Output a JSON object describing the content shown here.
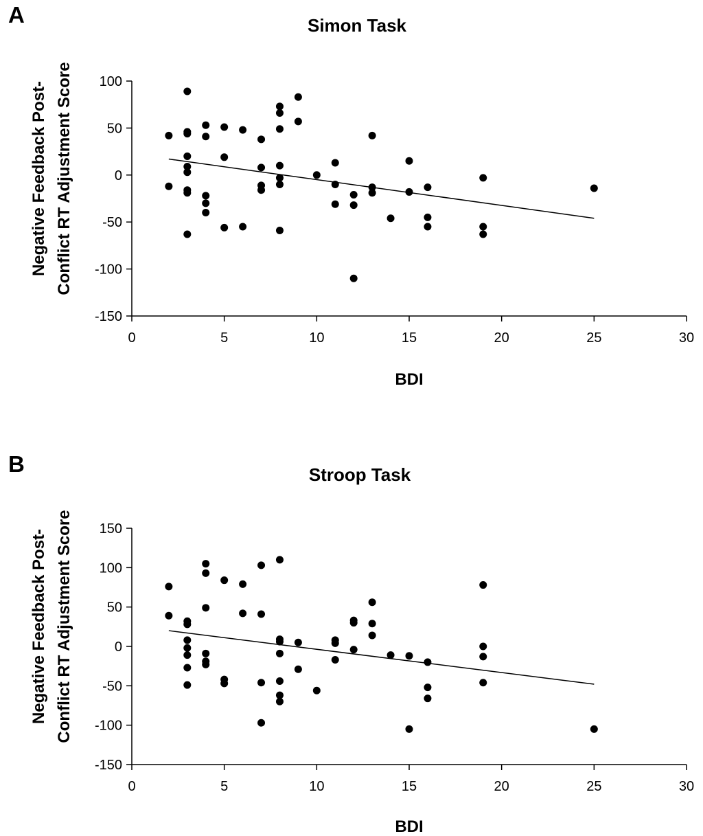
{
  "chart_data": [
    {
      "type": "scatter",
      "panel_label": "A",
      "title": "Simon Task",
      "xlabel": "BDI",
      "ylabel_lines": [
        "Negative Feedback Post-",
        "Conflict RT Adjustment Score"
      ],
      "xlim": [
        0,
        30
      ],
      "ylim": [
        -150,
        100
      ],
      "xticks": [
        0,
        5,
        10,
        15,
        20,
        25,
        30
      ],
      "yticks": [
        -150,
        -100,
        -50,
        0,
        50,
        100
      ],
      "grid": false,
      "marker_color": "#000000",
      "points": [
        [
          2,
          42
        ],
        [
          2,
          -12
        ],
        [
          3,
          89
        ],
        [
          3,
          46
        ],
        [
          3,
          44
        ],
        [
          3,
          20
        ],
        [
          3,
          9
        ],
        [
          3,
          3
        ],
        [
          3,
          -16
        ],
        [
          3,
          -19
        ],
        [
          3,
          -63
        ],
        [
          4,
          53
        ],
        [
          4,
          41
        ],
        [
          4,
          -22
        ],
        [
          4,
          -30
        ],
        [
          4,
          -40
        ],
        [
          5,
          51
        ],
        [
          5,
          19
        ],
        [
          5,
          -56
        ],
        [
          6,
          48
        ],
        [
          6,
          -55
        ],
        [
          7,
          38
        ],
        [
          7,
          8
        ],
        [
          7,
          -11
        ],
        [
          7,
          -16
        ],
        [
          8,
          73
        ],
        [
          8,
          66
        ],
        [
          8,
          49
        ],
        [
          8,
          10
        ],
        [
          8,
          -3
        ],
        [
          8,
          -10
        ],
        [
          8,
          -59
        ],
        [
          9,
          83
        ],
        [
          9,
          57
        ],
        [
          10,
          0
        ],
        [
          11,
          13
        ],
        [
          11,
          -10
        ],
        [
          11,
          -31
        ],
        [
          12,
          -21
        ],
        [
          12,
          -32
        ],
        [
          12,
          -110
        ],
        [
          13,
          42
        ],
        [
          13,
          -13
        ],
        [
          13,
          -19
        ],
        [
          14,
          -46
        ],
        [
          15,
          15
        ],
        [
          15,
          -18
        ],
        [
          16,
          -13
        ],
        [
          16,
          -45
        ],
        [
          16,
          -55
        ],
        [
          19,
          -3
        ],
        [
          19,
          -55
        ],
        [
          19,
          -63
        ],
        [
          25,
          -14
        ]
      ],
      "trendline": {
        "x": [
          2,
          25
        ],
        "y": [
          17,
          -46
        ]
      }
    },
    {
      "type": "scatter",
      "panel_label": "B",
      "title": "Stroop Task",
      "xlabel": "BDI",
      "ylabel_lines": [
        "Negative Feedback Post-",
        "Conflict RT Adjustment Score"
      ],
      "xlim": [
        0,
        30
      ],
      "ylim": [
        -150,
        150
      ],
      "xticks": [
        0,
        5,
        10,
        15,
        20,
        25,
        30
      ],
      "yticks": [
        -150,
        -100,
        -50,
        0,
        50,
        100,
        150
      ],
      "grid": false,
      "marker_color": "#000000",
      "points": [
        [
          2,
          76
        ],
        [
          2,
          39
        ],
        [
          3,
          32
        ],
        [
          3,
          28
        ],
        [
          3,
          8
        ],
        [
          3,
          -2
        ],
        [
          3,
          -11
        ],
        [
          3,
          -27
        ],
        [
          3,
          -49
        ],
        [
          4,
          105
        ],
        [
          4,
          93
        ],
        [
          4,
          49
        ],
        [
          4,
          -9
        ],
        [
          4,
          -19
        ],
        [
          4,
          -23
        ],
        [
          5,
          84
        ],
        [
          5,
          -42
        ],
        [
          5,
          -47
        ],
        [
          6,
          79
        ],
        [
          6,
          42
        ],
        [
          7,
          103
        ],
        [
          7,
          41
        ],
        [
          7,
          -46
        ],
        [
          7,
          -97
        ],
        [
          8,
          110
        ],
        [
          8,
          9
        ],
        [
          8,
          6
        ],
        [
          8,
          -9
        ],
        [
          8,
          -44
        ],
        [
          8,
          -62
        ],
        [
          8,
          -70
        ],
        [
          9,
          5
        ],
        [
          9,
          -29
        ],
        [
          10,
          -56
        ],
        [
          11,
          8
        ],
        [
          11,
          4
        ],
        [
          11,
          -17
        ],
        [
          12,
          33
        ],
        [
          12,
          30
        ],
        [
          12,
          -4
        ],
        [
          13,
          56
        ],
        [
          13,
          29
        ],
        [
          13,
          14
        ],
        [
          14,
          -11
        ],
        [
          15,
          -12
        ],
        [
          15,
          -105
        ],
        [
          16,
          -20
        ],
        [
          16,
          -52
        ],
        [
          16,
          -66
        ],
        [
          19,
          78
        ],
        [
          19,
          0
        ],
        [
          19,
          -13
        ],
        [
          19,
          -46
        ],
        [
          25,
          -105
        ]
      ],
      "trendline": {
        "x": [
          2,
          25
        ],
        "y": [
          20,
          -48
        ]
      }
    }
  ]
}
